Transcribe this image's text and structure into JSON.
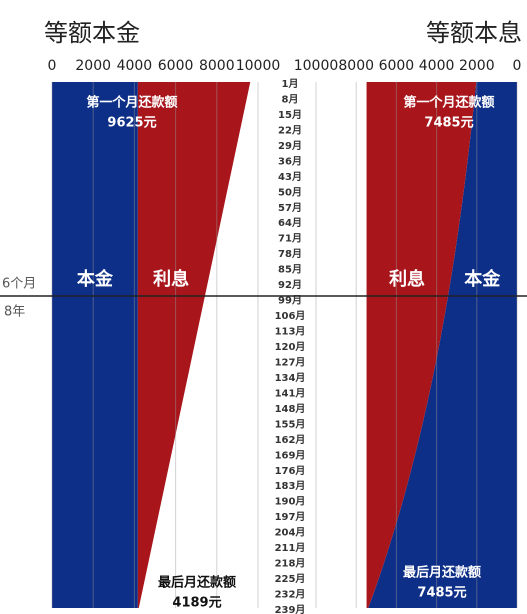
{
  "chart_data": [
    {
      "type": "area",
      "title": "等额本金",
      "direction": "left-to-right",
      "categories": [
        "1月",
        "8月",
        "15月",
        "22月",
        "29月",
        "36月",
        "43月",
        "50月",
        "57月",
        "64月",
        "71月",
        "78月",
        "85月",
        "92月",
        "99月",
        "106月",
        "113月",
        "120月",
        "127月",
        "134月",
        "141月",
        "148月",
        "155月",
        "162月",
        "169月",
        "176月",
        "183月",
        "190月",
        "197月",
        "204月",
        "211月",
        "218月",
        "225月",
        "232月",
        "239月"
      ],
      "xlim": [
        0,
        10000
      ],
      "xticks": [
        0,
        2000,
        4000,
        6000,
        8000,
        10000
      ],
      "grid": true,
      "series": [
        {
          "name": "本金",
          "color": "#0d2f87",
          "values": [
            4167,
            4167,
            4167,
            4167,
            4167,
            4167,
            4167,
            4167,
            4167,
            4167,
            4167,
            4167,
            4167,
            4167,
            4167,
            4167,
            4167,
            4167,
            4167,
            4167,
            4167,
            4167,
            4167,
            4167,
            4167,
            4167,
            4167,
            4167,
            4167,
            4167,
            4167,
            4167,
            4167,
            4167,
            4167
          ]
        },
        {
          "name": "利息",
          "color": "#a8161c",
          "values": [
            5458,
            5299,
            5140,
            4981,
            4822,
            4663,
            4503,
            4344,
            4185,
            4026,
            3867,
            3707,
            3548,
            3389,
            3230,
            3070,
            2911,
            2752,
            2593,
            2434,
            2274,
            2115,
            1956,
            1797,
            1638,
            1478,
            1319,
            1160,
            1001,
            841,
            682,
            523,
            364,
            205,
            45
          ]
        }
      ],
      "annotations": {
        "first_title": "第一个月还款额",
        "first_value": "9625元",
        "last_title": "最后月还款额",
        "last_value": "4189元"
      }
    },
    {
      "type": "area",
      "title": "等额本息",
      "direction": "right-to-left",
      "categories": [
        "1月",
        "8月",
        "15月",
        "22月",
        "29月",
        "36月",
        "43月",
        "50月",
        "57月",
        "64月",
        "71月",
        "78月",
        "85月",
        "92月",
        "99月",
        "106月",
        "113月",
        "120月",
        "127月",
        "134月",
        "141月",
        "148月",
        "155月",
        "162月",
        "169月",
        "176月",
        "183月",
        "190月",
        "197月",
        "204月",
        "211月",
        "218月",
        "225月",
        "232月",
        "239月"
      ],
      "xlim": [
        0,
        10000
      ],
      "xticks": [
        0,
        2000,
        4000,
        6000,
        8000,
        10000
      ],
      "grid": true,
      "series": [
        {
          "name": "本金",
          "color": "#0d2f87",
          "values": [
            2027,
            2106,
            2187,
            2272,
            2361,
            2452,
            2547,
            2646,
            2749,
            2856,
            2966,
            3081,
            3201,
            3325,
            3454,
            3588,
            3727,
            3872,
            4022,
            4178,
            4340,
            4508,
            4683,
            4865,
            5054,
            5250,
            5454,
            5665,
            5885,
            6114,
            6351,
            6597,
            6853,
            7119,
            7403
          ]
        },
        {
          "name": "利息",
          "color": "#a8161c",
          "values": [
            5458,
            5379,
            5298,
            5213,
            5124,
            5033,
            4938,
            4839,
            4736,
            4629,
            4519,
            4404,
            4284,
            4160,
            4031,
            3897,
            3758,
            3613,
            3463,
            3307,
            3145,
            2977,
            2802,
            2620,
            2431,
            2235,
            2031,
            1820,
            1600,
            1371,
            1134,
            888,
            632,
            366,
            82
          ]
        }
      ],
      "annotations": {
        "first_title": "第一个月还款额",
        "first_value": "7485元",
        "last_title": "最后月还款额",
        "last_value": "7485元"
      }
    }
  ],
  "divider": {
    "top_label": "6个月",
    "bottom_label": "8年"
  }
}
